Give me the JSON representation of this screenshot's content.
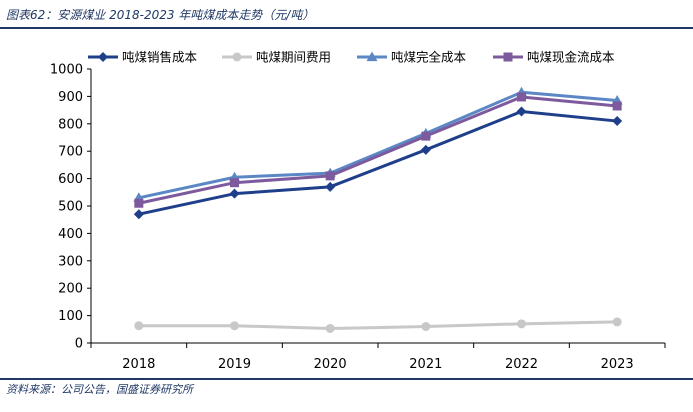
{
  "figure": {
    "title": "图表62：安源煤业 2018-2023 年吨煤成本走势（元/吨）",
    "source": "资料来源：公司公告，国盛证券研究所"
  },
  "chart_data": {
    "type": "line",
    "title": "",
    "xlabel": "",
    "ylabel": "",
    "categories": [
      "2018",
      "2019",
      "2020",
      "2021",
      "2022",
      "2023"
    ],
    "ylim": [
      0,
      1000
    ],
    "yticks": [
      "0",
      "100",
      "200",
      "300",
      "400",
      "500",
      "600",
      "700",
      "800",
      "900",
      "1000"
    ],
    "grid": false,
    "legend_position": "top",
    "series": [
      {
        "name": "吨煤销售成本",
        "values": [
          470,
          545,
          570,
          705,
          845,
          810
        ],
        "color": "#1f3f8a",
        "marker": "diamond"
      },
      {
        "name": "吨煤期间费用",
        "values": [
          63,
          63,
          53,
          60,
          70,
          77
        ],
        "color": "#c8c8c8",
        "marker": "circle"
      },
      {
        "name": "吨煤完全成本",
        "values": [
          530,
          605,
          620,
          765,
          915,
          885
        ],
        "color": "#5b87c5",
        "marker": "triangle"
      },
      {
        "name": "吨煤现金流成本",
        "values": [
          510,
          585,
          610,
          755,
          898,
          865
        ],
        "color": "#7d5a9e",
        "marker": "square"
      }
    ]
  }
}
